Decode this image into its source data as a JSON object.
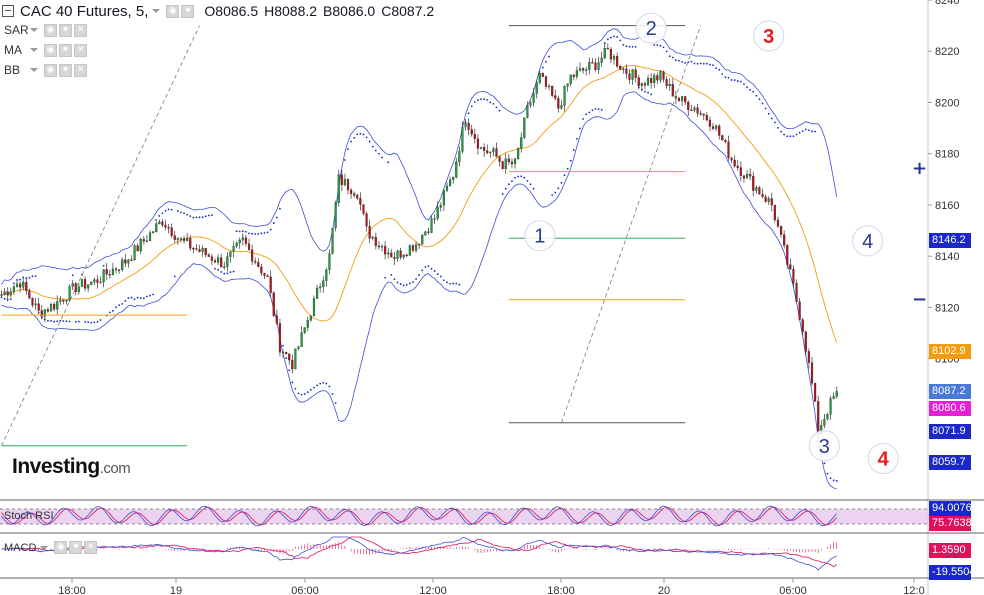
{
  "header": {
    "title": "CAC 40 Futures, 5,",
    "open": "O8086.5",
    "high": "H8088.2",
    "low": "B8086.0",
    "close": "C8087.2"
  },
  "indicators": [
    "SAR",
    "MA",
    "BB"
  ],
  "logo": {
    "main": "Investing",
    "suffix": ".com"
  },
  "price_tags": [
    {
      "value": "8146.2",
      "y": 8146.2,
      "color": "#1a27c9"
    },
    {
      "value": "8102.9",
      "y": 8102.9,
      "color": "#f39c12"
    },
    {
      "value": "8087.2",
      "y": 8087.2,
      "color": "#4a78d6"
    },
    {
      "value": "8080.6",
      "y": 8080.6,
      "color": "#e61fd6"
    },
    {
      "value": "8071.9",
      "y": 8071.9,
      "color": "#1a27c9"
    },
    {
      "value": "8059.7",
      "y": 8059.7,
      "color": "#1a27c9"
    }
  ],
  "sub_panels": {
    "stoch": {
      "label": "Stoch RSI",
      "tags": [
        {
          "value": "94.0076",
          "color": "#1a27c9"
        },
        {
          "value": "75.7638",
          "color": "#e0105a"
        }
      ]
    },
    "macd": {
      "label": "MACD",
      "tags": [
        {
          "value": "1.3590",
          "color": "#e0105a"
        },
        {
          "value": "-19.5504",
          "color": "#1a27c9"
        }
      ]
    }
  },
  "zoom": {
    "plus": "+",
    "minus": "−"
  },
  "chart_data": {
    "type": "candlestick",
    "title": "CAC 40 Futures, 5,",
    "y_ticks": [
      8240,
      8220,
      8200,
      8180,
      8160,
      8140,
      8120,
      8100
    ],
    "y_range": [
      8046,
      8240
    ],
    "x_ticks": [
      "18:00",
      "19",
      "06:00",
      "12:00",
      "18:00",
      "20",
      "06:00",
      "12:0"
    ],
    "close_path": [
      [
        0,
        8125
      ],
      [
        6,
        8130
      ],
      [
        12,
        8118
      ],
      [
        17,
        8121
      ],
      [
        24,
        8128
      ],
      [
        30,
        8130
      ],
      [
        40,
        8138
      ],
      [
        52,
        8154
      ],
      [
        58,
        8146
      ],
      [
        64,
        8142
      ],
      [
        72,
        8137
      ],
      [
        78,
        8146
      ],
      [
        86,
        8131
      ],
      [
        90,
        8105
      ],
      [
        94,
        8098
      ],
      [
        101,
        8122
      ],
      [
        106,
        8140
      ],
      [
        109,
        8170
      ],
      [
        115,
        8165
      ],
      [
        118,
        8150
      ],
      [
        122,
        8145
      ],
      [
        127,
        8140
      ],
      [
        134,
        8145
      ],
      [
        140,
        8155
      ],
      [
        146,
        8172
      ],
      [
        150,
        8194
      ],
      [
        155,
        8182
      ],
      [
        159,
        8180
      ],
      [
        162,
        8176
      ],
      [
        166,
        8176
      ],
      [
        170,
        8197
      ],
      [
        174,
        8210
      ],
      [
        180,
        8198
      ],
      [
        184,
        8210
      ],
      [
        192,
        8215
      ],
      [
        196,
        8220
      ],
      [
        201,
        8213
      ],
      [
        207,
        8208
      ],
      [
        213,
        8210
      ],
      [
        219,
        8201
      ],
      [
        224,
        8198
      ],
      [
        230,
        8192
      ],
      [
        236,
        8178
      ],
      [
        243,
        8168
      ],
      [
        249,
        8160
      ],
      [
        253,
        8142
      ],
      [
        256,
        8128
      ],
      [
        259,
        8112
      ],
      [
        262,
        8090
      ],
      [
        264,
        8072
      ],
      [
        267,
        8080
      ],
      [
        270,
        8087
      ]
    ],
    "annotations": [
      {
        "label": "1",
        "x": 174,
        "y": 8148,
        "color": "#2a3a8f"
      },
      {
        "label": "2",
        "x": 210,
        "y": 8229,
        "color": "#2a3a8f"
      },
      {
        "label": "3",
        "x": 248,
        "y": 8226,
        "color": "#e0201a"
      },
      {
        "label": "4",
        "x": 280,
        "y": 8146,
        "color": "#2a3a8f"
      },
      {
        "label": "3",
        "x": 266,
        "y": 8066,
        "color": "#2a3a8f"
      },
      {
        "label": "4",
        "x": 285,
        "y": 8061,
        "color": "#e0201a"
      }
    ],
    "fib_levels": [
      {
        "y": 8230,
        "color": "#555555",
        "from": 164,
        "to": 221
      },
      {
        "y": 8173,
        "color": "#f39c12",
        "from": 164,
        "to": 221
      },
      {
        "y": 8147,
        "color": "#27ae60",
        "from": 164,
        "to": 221
      },
      {
        "y": 8123,
        "color": "#f39c12",
        "from": 164,
        "to": 221
      },
      {
        "y": 8075,
        "color": "#555555",
        "from": 164,
        "to": 221
      },
      {
        "y": 8117,
        "color": "#f39c12",
        "from": 0,
        "to": 60
      },
      {
        "y": 8066,
        "color": "#27ae60",
        "from": 0,
        "to": 60
      }
    ]
  }
}
